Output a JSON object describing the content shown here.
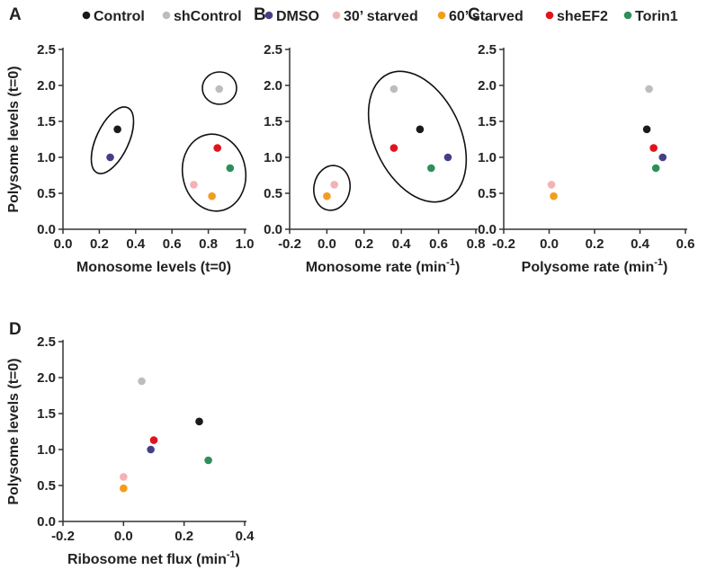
{
  "legend": [
    {
      "name": "Control",
      "color": "#1a1a1a"
    },
    {
      "name": "shControl",
      "color": "#bdbdbd"
    },
    {
      "name": "DMSO",
      "color": "#453f87"
    },
    {
      "name": "30’ starved",
      "color": "#f2b3b5"
    },
    {
      "name": "60’ starved",
      "color": "#f29e1d"
    },
    {
      "name": "sheEF2",
      "color": "#e0141d"
    },
    {
      "name": "Torin1",
      "color": "#2e8f5a"
    }
  ],
  "chart_data": [
    {
      "panel": "A",
      "type": "scatter",
      "xlabel": "Monosome levels (t=0)",
      "ylabel": "Polysome levels (t=0)",
      "xlim": [
        0,
        1
      ],
      "ylim": [
        0,
        2.5
      ],
      "xticks": [
        "0.0",
        "0.2",
        "0.4",
        "0.6",
        "0.8",
        "1.0"
      ],
      "yticks": [
        "0.0",
        "0.5",
        "1.0",
        "1.5",
        "2.0",
        "2.5"
      ],
      "points": [
        {
          "series": "Control",
          "x": 0.3,
          "y": 1.39
        },
        {
          "series": "shControl",
          "x": 0.86,
          "y": 1.95
        },
        {
          "series": "DMSO",
          "x": 0.26,
          "y": 1.0
        },
        {
          "series": "30’ starved",
          "x": 0.72,
          "y": 0.62
        },
        {
          "series": "60’ starved",
          "x": 0.82,
          "y": 0.46
        },
        {
          "series": "sheEF2",
          "x": 0.85,
          "y": 1.13
        },
        {
          "series": "Torin1",
          "x": 0.92,
          "y": 0.85
        }
      ],
      "annotations": [
        {
          "shape": "ellipse",
          "around": [
            "Control",
            "DMSO"
          ]
        },
        {
          "shape": "ellipse",
          "around": [
            "shControl"
          ]
        },
        {
          "shape": "ellipse",
          "around": [
            "30’ starved",
            "60’ starved",
            "sheEF2",
            "Torin1"
          ]
        }
      ]
    },
    {
      "panel": "B",
      "type": "scatter",
      "xlabel": "Monosome rate (min",
      "xlabel_sup": "-1",
      "xlabel_end": ")",
      "ylabel": "",
      "xlim": [
        -0.2,
        0.8
      ],
      "ylim": [
        0,
        2.5
      ],
      "xticks": [
        "-0.2",
        "0.0",
        "0.2",
        "0.4",
        "0.6",
        "0.8"
      ],
      "yticks": [
        "0.0",
        "0.5",
        "1.0",
        "1.5",
        "2.0",
        "2.5"
      ],
      "points": [
        {
          "series": "Control",
          "x": 0.5,
          "y": 1.39
        },
        {
          "series": "shControl",
          "x": 0.36,
          "y": 1.95
        },
        {
          "series": "DMSO",
          "x": 0.65,
          "y": 1.0
        },
        {
          "series": "30’ starved",
          "x": 0.04,
          "y": 0.62
        },
        {
          "series": "60’ starved",
          "x": 0.0,
          "y": 0.46
        },
        {
          "series": "sheEF2",
          "x": 0.36,
          "y": 1.13
        },
        {
          "series": "Torin1",
          "x": 0.56,
          "y": 0.85
        }
      ],
      "annotations": [
        {
          "shape": "ellipse",
          "around": [
            "shControl",
            "Control",
            "sheEF2",
            "DMSO",
            "Torin1"
          ]
        },
        {
          "shape": "ellipse",
          "around": [
            "30’ starved",
            "60’ starved"
          ]
        }
      ]
    },
    {
      "panel": "C",
      "type": "scatter",
      "xlabel": "Polysome rate (min",
      "xlabel_sup": "-1",
      "xlabel_end": ")",
      "ylabel": "",
      "xlim": [
        -0.2,
        0.6
      ],
      "ylim": [
        0,
        2.5
      ],
      "xticks": [
        "-0.2",
        "0.0",
        "0.2",
        "0.4",
        "0.6"
      ],
      "yticks": [
        "0.0",
        "0.5",
        "1.0",
        "1.5",
        "2.0",
        "2.5"
      ],
      "points": [
        {
          "series": "Control",
          "x": 0.43,
          "y": 1.39
        },
        {
          "series": "shControl",
          "x": 0.44,
          "y": 1.95
        },
        {
          "series": "DMSO",
          "x": 0.5,
          "y": 1.0
        },
        {
          "series": "30’ starved",
          "x": 0.01,
          "y": 0.62
        },
        {
          "series": "60’ starved",
          "x": 0.02,
          "y": 0.46
        },
        {
          "series": "sheEF2",
          "x": 0.46,
          "y": 1.13
        },
        {
          "series": "Torin1",
          "x": 0.47,
          "y": 0.85
        }
      ],
      "annotations": []
    },
    {
      "panel": "D",
      "type": "scatter",
      "xlabel": "Ribosome net flux (min",
      "xlabel_sup": "-1",
      "xlabel_end": ")",
      "ylabel": "Polysome levels (t=0)",
      "xlim": [
        -0.2,
        0.4
      ],
      "ylim": [
        0,
        2.5
      ],
      "xticks": [
        "-0.2",
        "0.0",
        "0.2",
        "0.4"
      ],
      "yticks": [
        "0.0",
        "0.5",
        "1.0",
        "1.5",
        "2.0",
        "2.5"
      ],
      "points": [
        {
          "series": "Control",
          "x": 0.25,
          "y": 1.39
        },
        {
          "series": "shControl",
          "x": 0.06,
          "y": 1.95
        },
        {
          "series": "DMSO",
          "x": 0.09,
          "y": 1.0
        },
        {
          "series": "30’ starved",
          "x": 0.0,
          "y": 0.62
        },
        {
          "series": "60’ starved",
          "x": 0.0,
          "y": 0.46
        },
        {
          "series": "sheEF2",
          "x": 0.1,
          "y": 1.13
        },
        {
          "series": "Torin1",
          "x": 0.28,
          "y": 0.85
        }
      ],
      "annotations": []
    }
  ]
}
